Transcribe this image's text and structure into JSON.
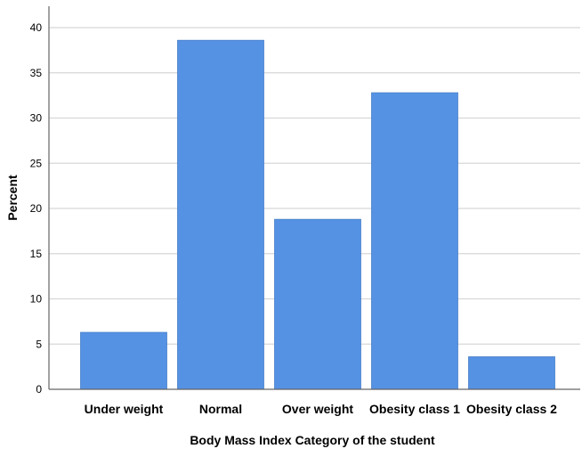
{
  "chart_data": {
    "type": "bar",
    "title": "",
    "xlabel": "Body Mass Index Category of the student",
    "ylabel": "Percent",
    "categories": [
      "Under weight",
      "Normal",
      "Over weight",
      "Obesity class 1",
      "Obesity class 2"
    ],
    "values": [
      6.3,
      38.6,
      18.8,
      32.8,
      3.6
    ],
    "ylim": [
      0,
      40
    ],
    "yticks": [
      "0",
      "5",
      "10",
      "15",
      "20",
      "25",
      "30",
      "35",
      "40"
    ],
    "grid": true,
    "legend": "none",
    "colors": {
      "bar": "#5592e4",
      "bar_edge": "#4a80c8",
      "grid": "#d7d7d7",
      "axis": "#666666"
    }
  }
}
